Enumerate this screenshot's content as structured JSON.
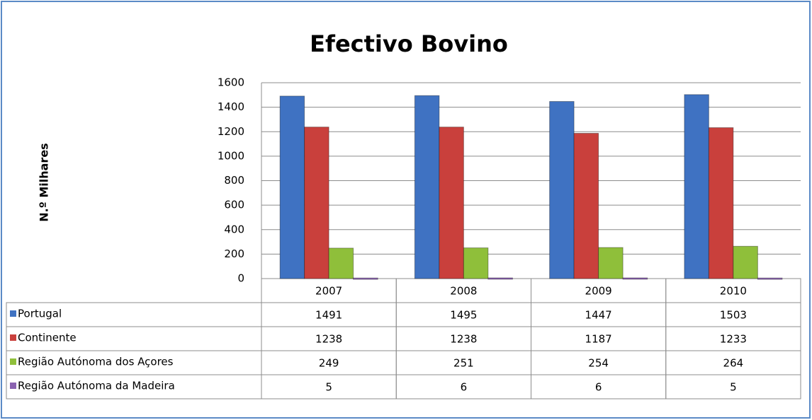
{
  "chart_data": {
    "type": "bar",
    "title": "Efectivo Bovino",
    "y_label": "N.º Milhares",
    "categories": [
      "2007",
      "2008",
      "2009",
      "2010"
    ],
    "series": [
      {
        "name": "Portugal",
        "color": "#3f72c2",
        "values": [
          1491,
          1495,
          1447,
          1503
        ]
      },
      {
        "name": "Continente",
        "color": "#c9403c",
        "values": [
          1238,
          1238,
          1187,
          1233
        ]
      },
      {
        "name": "Região Autónoma dos Açores",
        "color": "#8fbf3a",
        "values": [
          249,
          251,
          254,
          264
        ]
      },
      {
        "name": "Região Autónoma da Madeira",
        "color": "#8a62b0",
        "values": [
          5,
          6,
          6,
          5
        ]
      }
    ],
    "ylim": [
      0,
      1600
    ],
    "yticks": [
      0,
      200,
      400,
      600,
      800,
      1000,
      1200,
      1400,
      1600
    ],
    "grid": true
  }
}
